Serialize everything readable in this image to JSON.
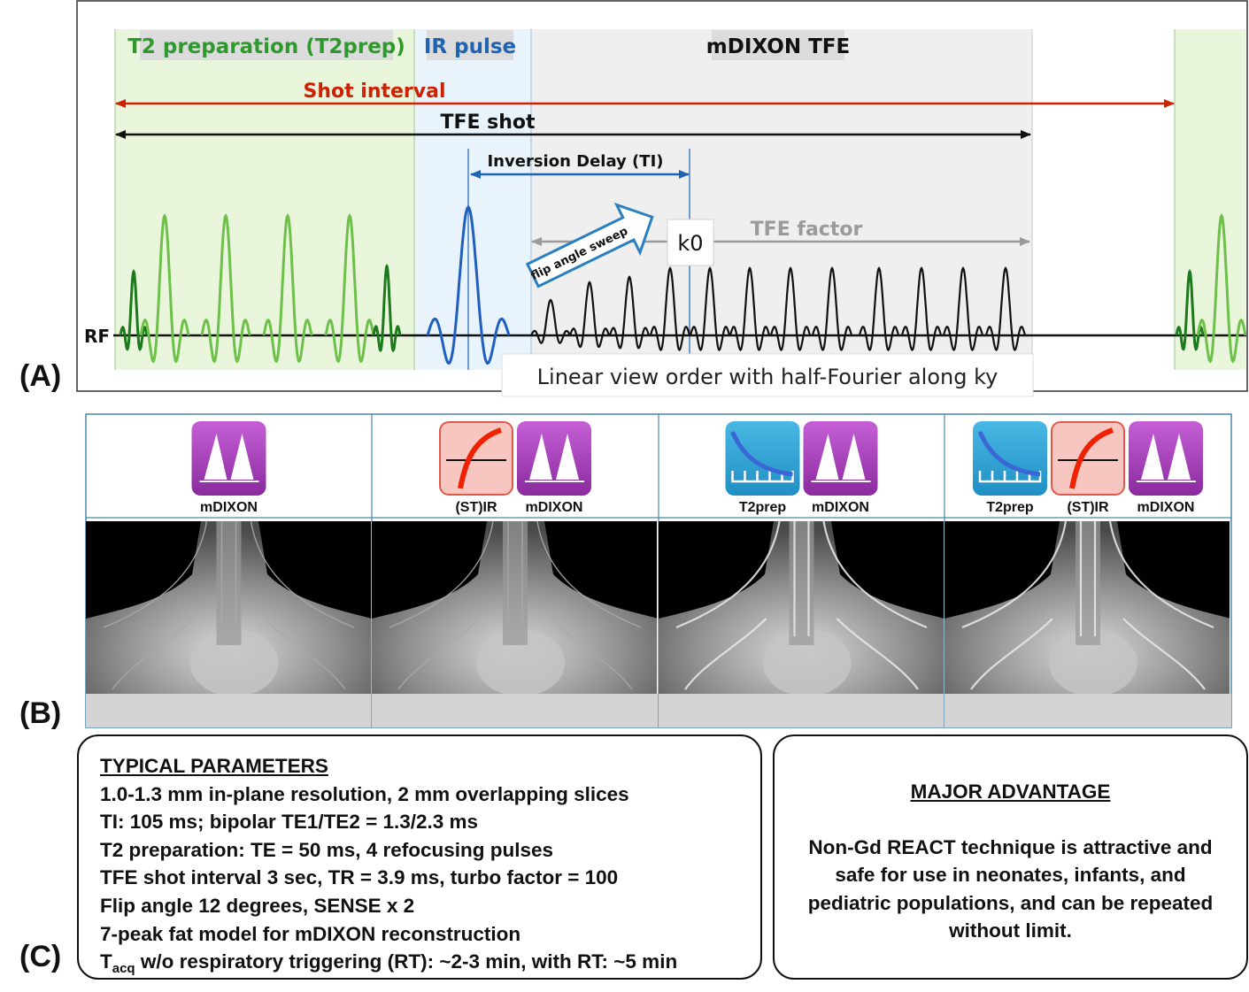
{
  "panel_labels": {
    "a": "(A)",
    "b": "(B)",
    "c": "(C)"
  },
  "panel_a": {
    "headers": {
      "t2prep": "T2 preparation (T2prep)",
      "ir": "IR pulse",
      "tfe": "mDIXON TFE"
    },
    "shot_interval": "Shot interval",
    "tfe_shot": "TFE shot",
    "inversion_delay": "Inversion Delay (TI)",
    "tfe_factor": "TFE factor",
    "k0": "k0",
    "flip_angle_sweep": "flip angle sweep",
    "rf": "RF",
    "view_order": "Linear view order with half-Fourier along ky",
    "colors": {
      "t2_green": "#2e9a2e",
      "ir_blue": "#1f63b3",
      "shot_red": "#cc2200",
      "gray_text": "#9a9a9a",
      "light_green": "#6dc04a",
      "dark_green": "#1b7a1b",
      "ir_pulse": "#1f5fbf",
      "t2_bg": "#eaf6dc",
      "ir_bg": "#e9f3fc",
      "tfe_bg": "#efefef"
    }
  },
  "panel_b": {
    "columns": [
      {
        "icons": [
          "mdixon-icon"
        ],
        "labels": [
          "mDIXON"
        ]
      },
      {
        "icons": [
          "stir-icon",
          "mdixon-icon"
        ],
        "labels": [
          "(ST)IR",
          "mDIXON"
        ]
      },
      {
        "icons": [
          "t2prep-icon",
          "mdixon-icon"
        ],
        "labels": [
          "T2prep",
          "mDIXON"
        ]
      },
      {
        "icons": [
          "t2prep-icon",
          "stir-icon",
          "mdixon-icon"
        ],
        "labels": [
          "T2prep",
          "(ST)IR",
          "mDIXON"
        ]
      }
    ]
  },
  "panel_c": {
    "params_title": "TYPICAL PARAMETERS",
    "params": [
      "1.0-1.3 mm in-plane resolution, 2 mm overlapping slices",
      "TI: 105 ms; bipolar TE1/TE2 = 1.3/2.3 ms",
      "T2 preparation: TE = 50 ms, 4 refocusing pulses",
      "TFE shot interval 3 sec, TR = 3.9 ms, turbo factor = 100",
      "Flip angle 12 degrees, SENSE x 2",
      "7-peak fat model for mDIXON reconstruction"
    ],
    "tacq": {
      "t": "T",
      "sub": "acq",
      "rest": " w/o respiratory triggering (RT): ~2-3 min, with RT: ~5 min"
    },
    "adv_title": "MAJOR ADVANTAGE",
    "adv_text": "Non-Gd REACT technique is attractive and safe for use in neonates, infants, and pediatric populations, and can be repeated without limit."
  }
}
